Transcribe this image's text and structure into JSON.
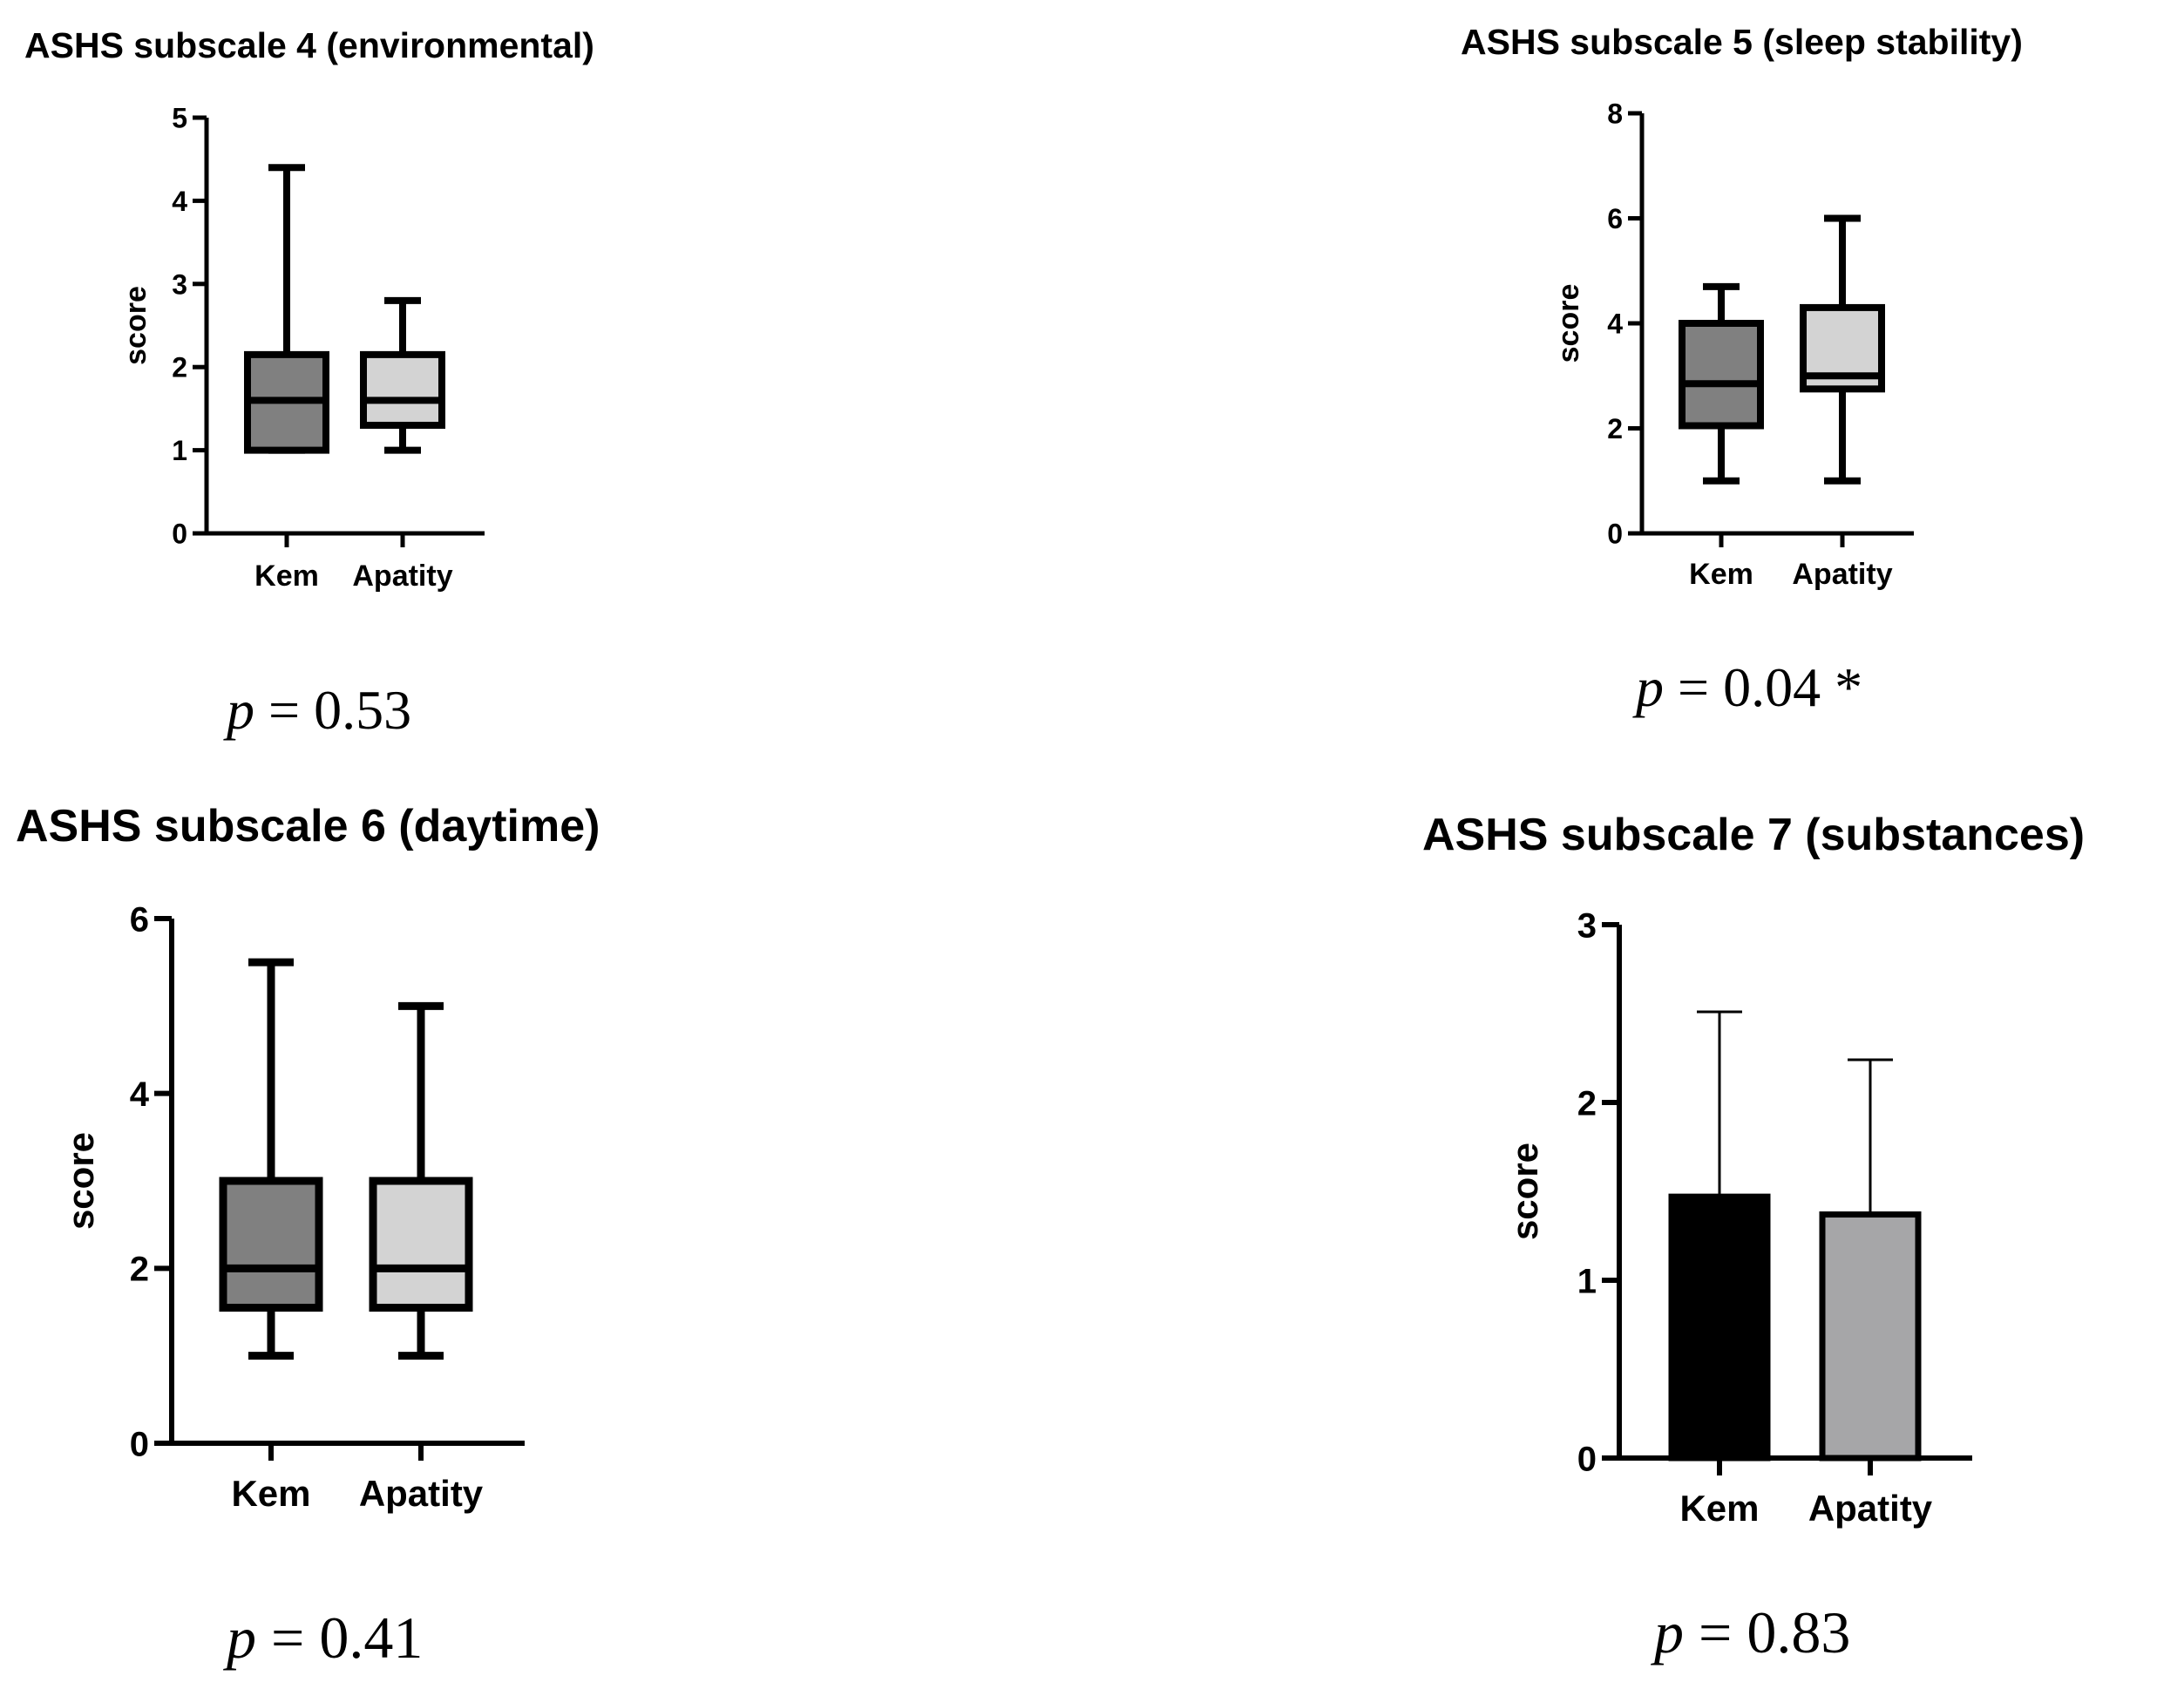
{
  "chart_data": [
    {
      "type": "box",
      "title": "ASHS subscale 4 (environmental)",
      "ylabel": "score",
      "categories": [
        "Kem",
        "Apatity"
      ],
      "ylim": [
        0,
        5
      ],
      "yticks": [
        0,
        1,
        2,
        3,
        4,
        5
      ],
      "boxes": [
        {
          "name": "Kem",
          "min": 1,
          "q1": 1,
          "median": 1.6,
          "q3": 2.15,
          "max": 4.4,
          "color": "#808080"
        },
        {
          "name": "Apatity",
          "min": 1,
          "q1": 1.3,
          "median": 1.6,
          "q3": 2.15,
          "max": 2.8,
          "color": "#d3d3d3"
        }
      ],
      "p_value": "0.53",
      "p_label": "p"
    },
    {
      "type": "box",
      "title": "ASHS subscale 5 (sleep stability)",
      "ylabel": "score",
      "categories": [
        "Kem",
        "Apatity"
      ],
      "ylim": [
        0,
        8
      ],
      "yticks": [
        0,
        2,
        4,
        6,
        8
      ],
      "boxes": [
        {
          "name": "Kem",
          "min": 1,
          "q1": 2.05,
          "median": 2.85,
          "q3": 4.0,
          "max": 4.7,
          "color": "#808080"
        },
        {
          "name": "Apatity",
          "min": 1,
          "q1": 2.75,
          "median": 3.0,
          "q3": 4.3,
          "max": 6.0,
          "color": "#d3d3d3"
        }
      ],
      "p_value": "0.04 *",
      "p_label": "p"
    },
    {
      "type": "box",
      "title": "ASHS subscale 6 (daytime)",
      "ylabel": "score",
      "categories": [
        "Kem",
        "Apatity"
      ],
      "ylim": [
        0,
        6
      ],
      "yticks": [
        0,
        2,
        4,
        6
      ],
      "boxes": [
        {
          "name": "Kem",
          "min": 1,
          "q1": 1.55,
          "median": 2.0,
          "q3": 3.0,
          "max": 5.5,
          "color": "#808080"
        },
        {
          "name": "Apatity",
          "min": 1,
          "q1": 1.55,
          "median": 2.0,
          "q3": 3.0,
          "max": 5.0,
          "color": "#d3d3d3"
        }
      ],
      "p_value": "0.41",
      "p_label": "p"
    },
    {
      "type": "bar",
      "title": "ASHS subscale 7 (substances)",
      "ylabel": "score",
      "categories": [
        "Kem",
        "Apatity"
      ],
      "ylim": [
        0,
        3
      ],
      "yticks": [
        0,
        1,
        2,
        3
      ],
      "values": [
        1.47,
        1.37
      ],
      "error_upper": [
        2.51,
        2.24
      ],
      "colors": [
        "#000000",
        "#a6a6a8"
      ],
      "p_value": "0.83",
      "p_label": "p"
    }
  ]
}
